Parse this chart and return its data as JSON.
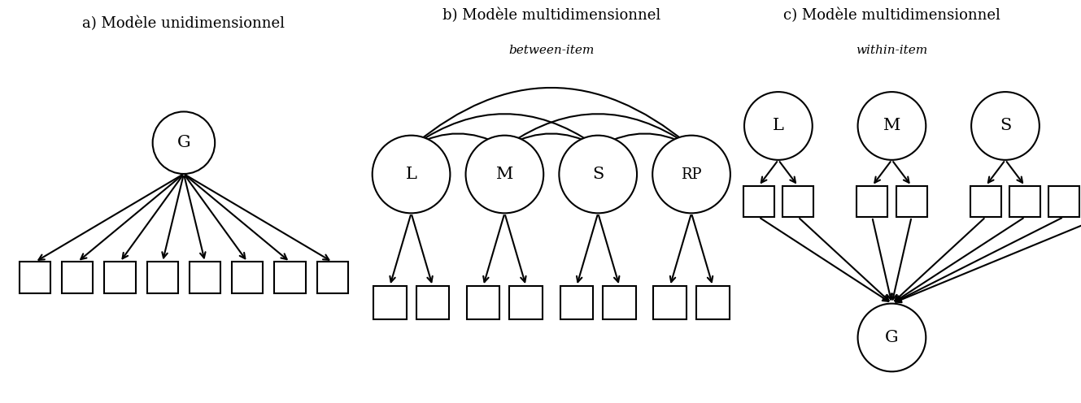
{
  "title_a": "a) Modèle unidimensionnel",
  "title_b": "b) Modèle multidimensionnel",
  "subtitle_b": "between-item",
  "title_c": "c) Modèle multidimensionnel",
  "subtitle_c": "within-item",
  "bg_color": "#ffffff",
  "circle_color": "#000000",
  "arrow_color": "#000000",
  "box_color": "#000000",
  "title_fontsize": 13,
  "subtitle_fontsize": 11,
  "label_fontsize": 14,
  "lw": 1.5
}
